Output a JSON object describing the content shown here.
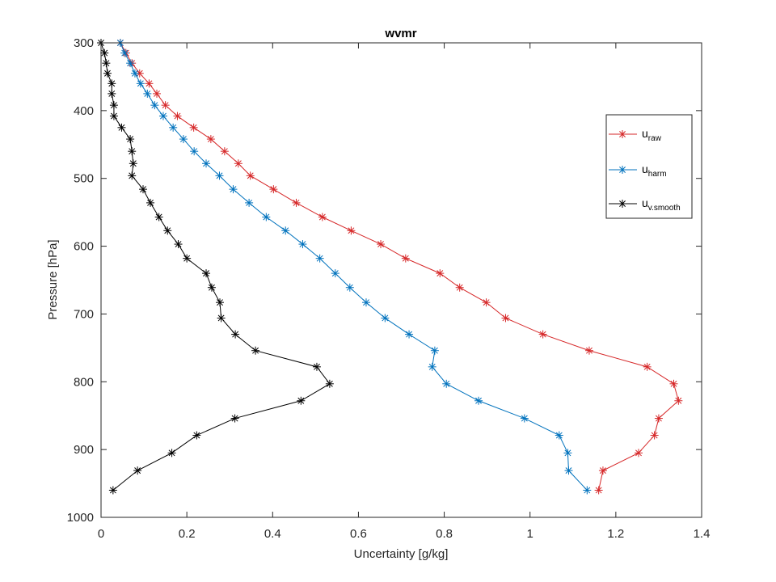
{
  "chart_data": {
    "type": "line",
    "title": "wvmr",
    "xlabel": "Uncertainty [g/kg]",
    "ylabel": "Pressure [hPa]",
    "xlim": [
      0,
      1.4
    ],
    "ylim": [
      300,
      1000
    ],
    "y_reversed": true,
    "xticks": [
      0,
      0.2,
      0.4,
      0.6,
      0.8,
      1,
      1.2,
      1.4
    ],
    "yticks": [
      300,
      400,
      500,
      600,
      700,
      800,
      900,
      1000
    ],
    "xtick_labels": [
      "0",
      "0.2",
      "0.4",
      "0.6",
      "0.8",
      "1",
      "1.2",
      "1.4"
    ],
    "ytick_labels": [
      "300",
      "400",
      "500",
      "600",
      "700",
      "800",
      "900",
      "1000"
    ],
    "grid": false,
    "legend_position": "top-right",
    "marker": "asterisk",
    "y": [
      300,
      315,
      330,
      345,
      360,
      375,
      392,
      408,
      425,
      442,
      460,
      478,
      496,
      516,
      536,
      557,
      577,
      597,
      618,
      640,
      661,
      683,
      706,
      730,
      754,
      778,
      803,
      828,
      854,
      879,
      905,
      931,
      960
    ],
    "series": [
      {
        "name": "u",
        "subscript": "raw",
        "color": "#d62728",
        "x": [
          0.045,
          0.058,
          0.072,
          0.09,
          0.112,
          0.13,
          0.15,
          0.178,
          0.216,
          0.256,
          0.288,
          0.32,
          0.348,
          0.402,
          0.455,
          0.516,
          0.583,
          0.652,
          0.71,
          0.79,
          0.836,
          0.898,
          0.943,
          1.03,
          1.138,
          1.273,
          1.335,
          1.346,
          1.3,
          1.29,
          1.253,
          1.17,
          1.16
        ]
      },
      {
        "name": "u",
        "subscript": "harm",
        "color": "#0072bd",
        "x": [
          0.045,
          0.055,
          0.068,
          0.079,
          0.092,
          0.108,
          0.125,
          0.145,
          0.168,
          0.192,
          0.217,
          0.245,
          0.276,
          0.308,
          0.345,
          0.385,
          0.43,
          0.47,
          0.51,
          0.546,
          0.58,
          0.618,
          0.662,
          0.718,
          0.778,
          0.772,
          0.805,
          0.88,
          0.987,
          1.068,
          1.088,
          1.09,
          1.133
        ]
      },
      {
        "name": "u",
        "subscript": "v.smooth",
        "color": "#000000",
        "x": [
          0.0,
          0.008,
          0.012,
          0.015,
          0.025,
          0.025,
          0.03,
          0.03,
          0.048,
          0.068,
          0.072,
          0.075,
          0.072,
          0.098,
          0.115,
          0.135,
          0.155,
          0.18,
          0.2,
          0.245,
          0.258,
          0.277,
          0.28,
          0.313,
          0.36,
          0.503,
          0.533,
          0.466,
          0.312,
          0.223,
          0.165,
          0.085,
          0.028
        ]
      }
    ]
  },
  "legend": {
    "entries": [
      {
        "main": "u",
        "sub": "raw"
      },
      {
        "main": "u",
        "sub": "harm"
      },
      {
        "main": "u",
        "sub": "v.smooth"
      }
    ]
  }
}
